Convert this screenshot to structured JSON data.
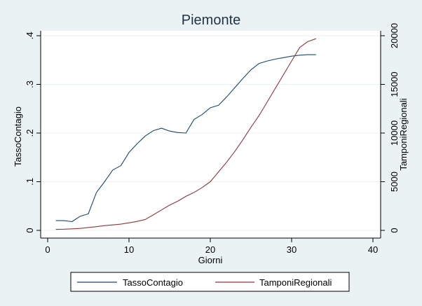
{
  "chart_data": {
    "type": "line",
    "title": "Piemonte",
    "xlabel": "Giorni",
    "ylabel_left": "TassoContagio",
    "ylabel_right": "TamponiRegionali",
    "xlim": [
      0,
      40
    ],
    "ylim_left": [
      0,
      0.4
    ],
    "ylim_right": [
      0,
      20000
    ],
    "xticks": [
      "0",
      "10",
      "20",
      "30",
      "40"
    ],
    "yticks_left": [
      "0",
      ".1",
      ".2",
      ".3",
      ".4"
    ],
    "yticks_right": [
      "0",
      "5000",
      "10000",
      "15000",
      "20000"
    ],
    "grid": "horizontal",
    "legend_position": "bottom",
    "series": [
      {
        "name": "TassoContagio",
        "axis": "left",
        "color": "#1a476f",
        "x": [
          1,
          2,
          3,
          4,
          5,
          6,
          7,
          8,
          9,
          10,
          11,
          12,
          13,
          14,
          15,
          16,
          17,
          18,
          19,
          20,
          21,
          22,
          23,
          24,
          25,
          26,
          27,
          28,
          29,
          30,
          31,
          32,
          33
        ],
        "values": [
          0.02,
          0.02,
          0.018,
          0.029,
          0.034,
          0.078,
          0.1,
          0.124,
          0.133,
          0.16,
          0.178,
          0.194,
          0.205,
          0.21,
          0.204,
          0.201,
          0.2,
          0.228,
          0.238,
          0.252,
          0.257,
          0.274,
          0.293,
          0.312,
          0.33,
          0.343,
          0.348,
          0.352,
          0.355,
          0.358,
          0.36,
          0.361,
          0.361
        ]
      },
      {
        "name": "TamponiRegionali",
        "axis": "right",
        "color": "#90353b",
        "x": [
          1,
          2,
          3,
          4,
          5,
          6,
          7,
          8,
          9,
          10,
          11,
          12,
          13,
          14,
          15,
          16,
          17,
          18,
          19,
          20,
          21,
          22,
          23,
          24,
          25,
          26,
          27,
          28,
          29,
          30,
          31,
          32,
          33
        ],
        "values": [
          100,
          120,
          160,
          200,
          290,
          380,
          490,
          560,
          640,
          780,
          920,
          1120,
          1600,
          2100,
          2600,
          3000,
          3500,
          3900,
          4400,
          5000,
          6000,
          7000,
          8100,
          9300,
          10600,
          11800,
          13200,
          14600,
          16000,
          17400,
          18800,
          19400,
          19700
        ]
      }
    ]
  }
}
